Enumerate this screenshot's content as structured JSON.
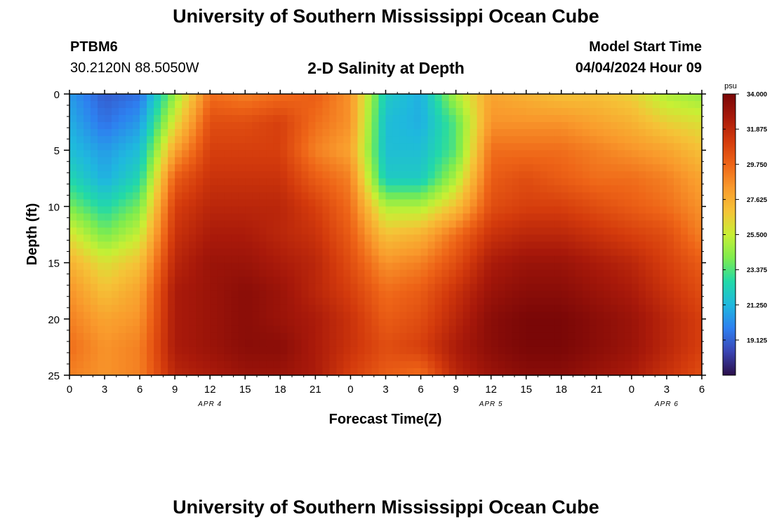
{
  "header": {
    "main_title": "University of Southern Mississippi Ocean Cube",
    "footer_title": "University of Southern Mississippi Ocean Cube",
    "station_id": "PTBM6",
    "lat_lon": "30.2120N  88.5050W",
    "plot_title": "2-D Salinity at Depth",
    "model_start_label": "Model Start Time",
    "model_start_value": "04/04/2024 Hour 09"
  },
  "chart_data": {
    "type": "heatmap",
    "title": "2-D Salinity at Depth",
    "xlabel": "Forecast Time(Z)",
    "ylabel": "Depth (ft)",
    "x_hours_range": [
      0,
      54
    ],
    "ylim": [
      0,
      25
    ],
    "x_tick_labels": [
      "0",
      "3",
      "6",
      "9",
      "12",
      "15",
      "18",
      "21",
      "0",
      "3",
      "6",
      "9",
      "12",
      "15",
      "18",
      "21",
      "0",
      "3",
      "6"
    ],
    "x_tick_hours": [
      0,
      3,
      6,
      9,
      12,
      15,
      18,
      21,
      24,
      27,
      30,
      33,
      36,
      39,
      42,
      45,
      48,
      51,
      54
    ],
    "y_tick_labels": [
      "0",
      "5",
      "10",
      "15",
      "20",
      "25"
    ],
    "y_ticks": [
      0,
      5,
      10,
      15,
      20,
      25
    ],
    "date_labels": [
      {
        "text": "APR 4",
        "hour": 12
      },
      {
        "text": "APR 5",
        "hour": 36
      },
      {
        "text": "APR 6",
        "hour": 51
      }
    ],
    "colorbar": {
      "unit": "psu",
      "min": 17,
      "max": 34,
      "tick_labels": [
        "34.000",
        "31.875",
        "29.750",
        "27.625",
        "25.500",
        "23.375",
        "21.250",
        "19.125"
      ],
      "tick_values": [
        34.0,
        31.875,
        29.75,
        27.625,
        25.5,
        23.375,
        21.25,
        19.125
      ],
      "colors": [
        "#2b0f4a",
        "#3a44b3",
        "#2e7ff0",
        "#1fb8de",
        "#22d9a8",
        "#7eec4e",
        "#c8ef34",
        "#f5c337",
        "#f99a2c",
        "#ee6417",
        "#d33a0c",
        "#a8190a",
        "#7a0707"
      ]
    },
    "salinity_grid": {
      "hours": [
        0,
        3,
        6,
        9,
        12,
        15,
        18,
        21,
        24,
        27,
        30,
        33,
        36,
        39,
        42,
        45,
        48,
        51,
        54
      ],
      "depths": [
        0,
        2.5,
        5,
        7.5,
        10,
        12.5,
        15,
        17.5,
        20,
        22.5,
        25
      ],
      "values": [
        [
          20.5,
          19.0,
          19.5,
          24.5,
          29.5,
          29.0,
          29.5,
          30.0,
          28.5,
          22.0,
          21.0,
          25.0,
          28.0,
          27.5,
          27.0,
          27.0,
          26.5,
          25.0,
          24.5
        ],
        [
          21.0,
          19.5,
          20.5,
          26.0,
          30.5,
          30.5,
          31.0,
          29.5,
          28.5,
          21.5,
          21.0,
          23.5,
          28.5,
          28.5,
          28.5,
          28.0,
          27.5,
          26.5,
          26.0
        ],
        [
          21.5,
          20.5,
          21.5,
          28.0,
          31.0,
          31.0,
          31.0,
          29.0,
          28.0,
          21.5,
          21.5,
          23.5,
          29.5,
          29.5,
          29.5,
          29.0,
          28.5,
          28.0,
          27.0
        ],
        [
          22.5,
          21.0,
          22.5,
          30.0,
          31.5,
          31.5,
          31.5,
          30.0,
          29.0,
          22.0,
          22.0,
          25.0,
          30.0,
          30.5,
          30.0,
          29.5,
          29.5,
          29.0,
          28.0
        ],
        [
          24.0,
          22.5,
          24.0,
          31.0,
          32.0,
          32.0,
          32.0,
          31.0,
          29.5,
          25.0,
          25.0,
          27.0,
          30.5,
          31.0,
          31.0,
          30.5,
          30.0,
          29.5,
          28.5
        ],
        [
          26.0,
          24.0,
          25.5,
          31.5,
          32.5,
          32.5,
          32.0,
          31.5,
          30.0,
          27.0,
          27.5,
          29.5,
          31.5,
          32.0,
          32.0,
          31.5,
          31.0,
          30.5,
          29.0
        ],
        [
          27.5,
          26.0,
          27.0,
          32.0,
          33.0,
          33.0,
          32.5,
          32.0,
          30.5,
          28.5,
          29.0,
          30.5,
          32.5,
          33.0,
          33.0,
          32.5,
          32.0,
          31.0,
          30.0
        ],
        [
          28.5,
          27.0,
          28.0,
          32.5,
          33.0,
          33.5,
          33.0,
          32.0,
          31.0,
          29.5,
          30.0,
          31.5,
          33.0,
          33.5,
          33.5,
          33.0,
          32.5,
          31.5,
          30.5
        ],
        [
          29.0,
          28.0,
          28.5,
          32.5,
          33.0,
          33.5,
          33.0,
          32.5,
          31.5,
          30.0,
          30.5,
          32.0,
          33.5,
          34.0,
          34.0,
          33.5,
          33.0,
          32.0,
          31.0
        ],
        [
          29.5,
          28.5,
          29.0,
          32.5,
          33.0,
          33.5,
          33.5,
          32.5,
          31.5,
          30.5,
          31.0,
          32.5,
          33.5,
          34.0,
          34.0,
          33.5,
          33.0,
          32.0,
          31.0
        ],
        [
          29.0,
          28.5,
          29.0,
          32.0,
          32.5,
          33.0,
          33.0,
          32.5,
          31.0,
          30.0,
          29.5,
          32.0,
          33.0,
          33.5,
          33.5,
          33.0,
          32.5,
          31.5,
          30.5
        ]
      ]
    }
  }
}
